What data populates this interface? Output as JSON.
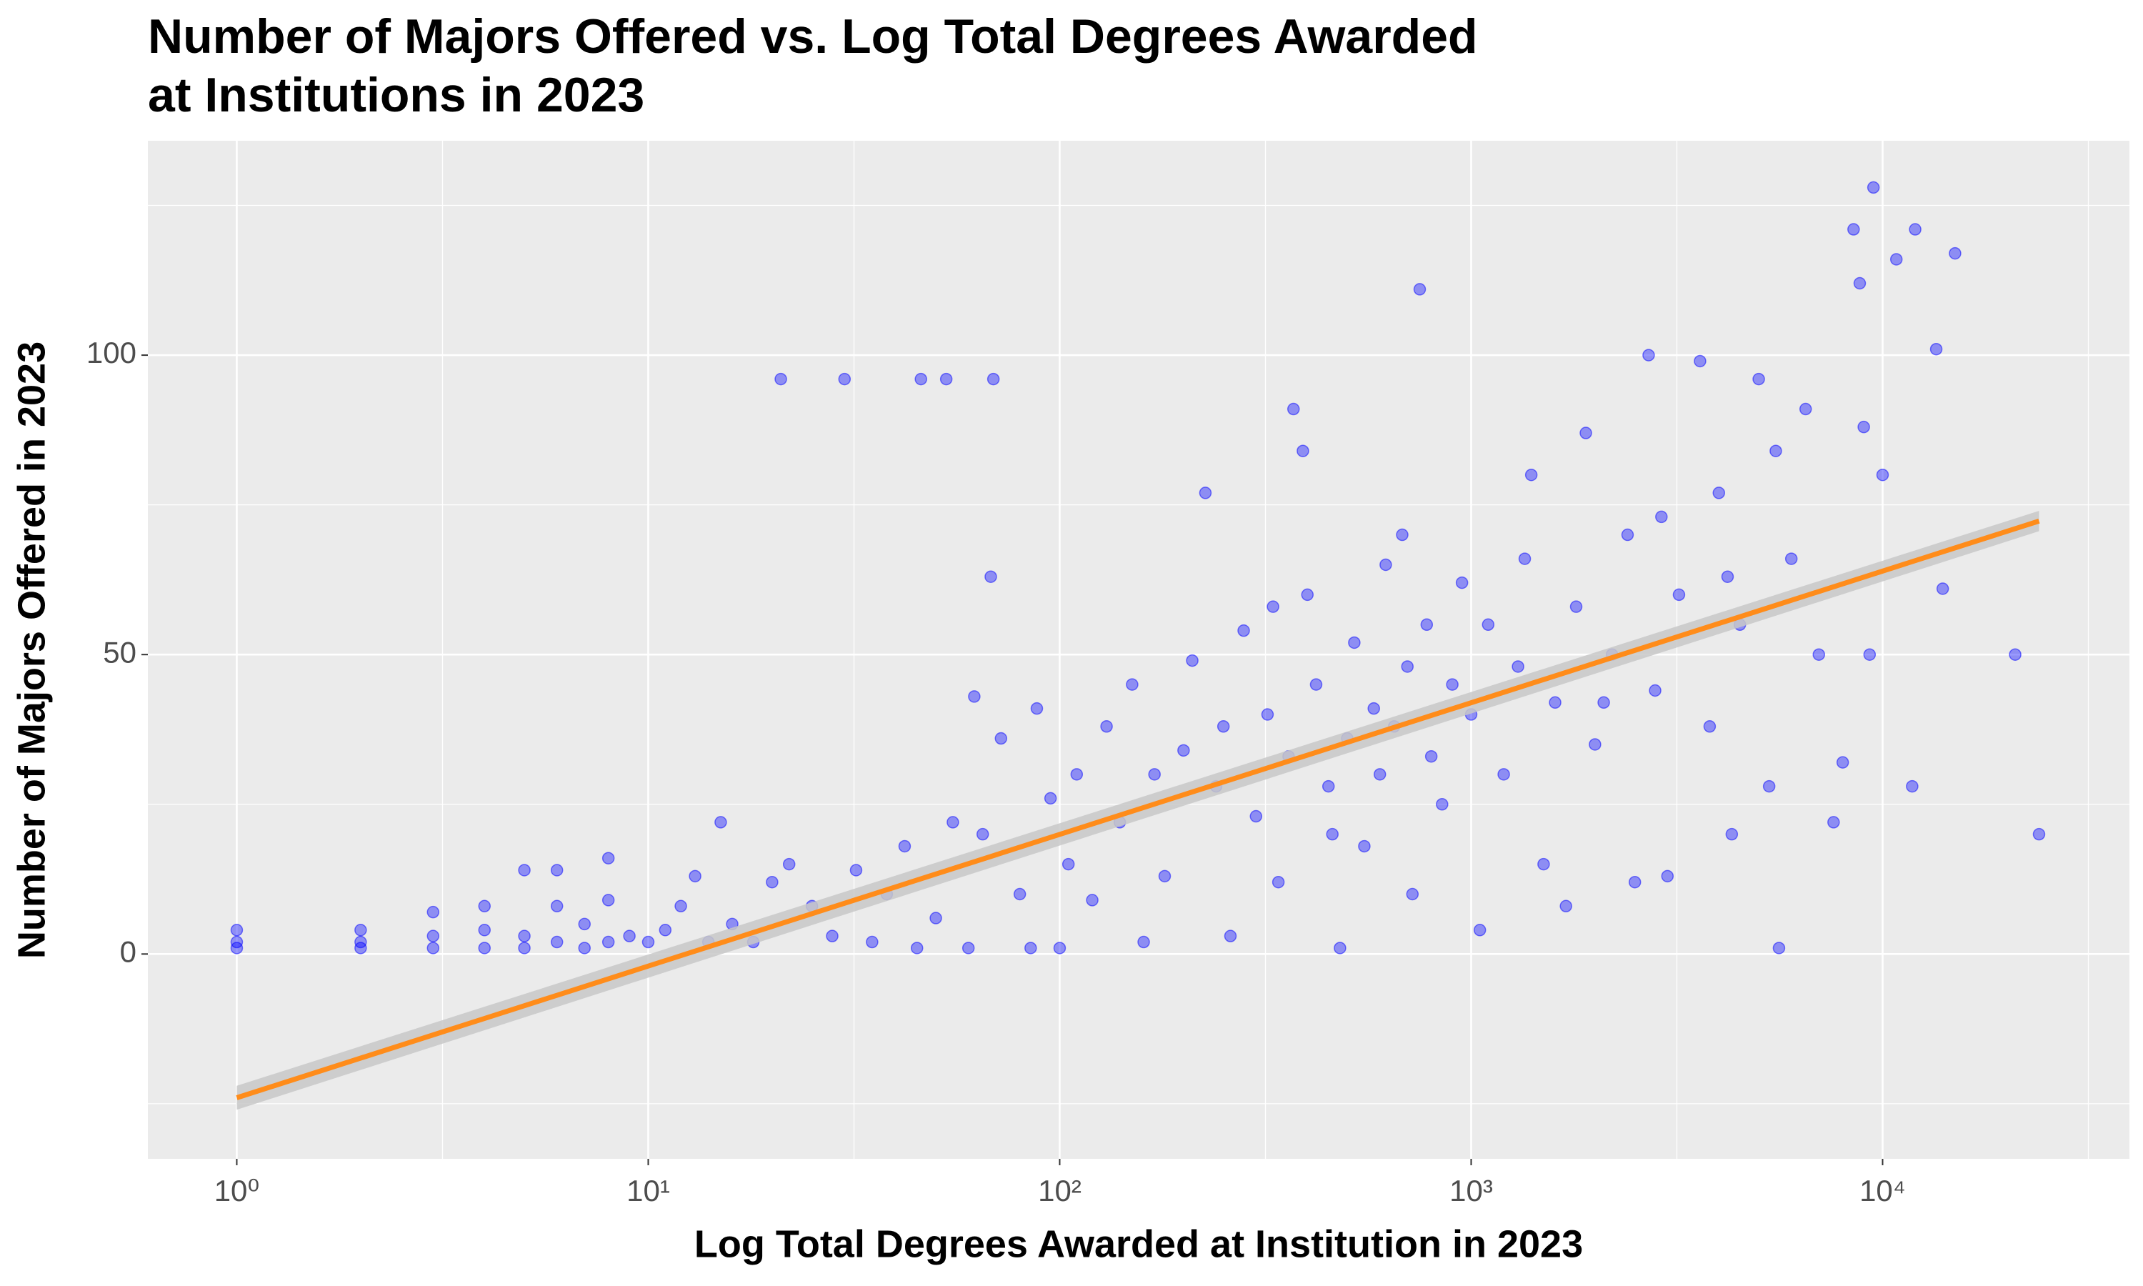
{
  "chart_data": {
    "type": "scatter",
    "title": [
      "Number of Majors Offered vs. Log Total Degrees Awarded",
      "at Institutions in 2023"
    ],
    "x_label": "Log Total Degrees Awarded at Institution in 2023",
    "y_label": "Number of Majors Offered in 2023",
    "x_log": true,
    "grid": true,
    "xlim": [
      0.608,
      39800
    ],
    "ylim": [
      -34.2,
      135.8
    ],
    "xticks": [
      {
        "value": 1,
        "label": "10⁰"
      },
      {
        "value": 10,
        "label": "10¹"
      },
      {
        "value": 100,
        "label": "10²"
      },
      {
        "value": 1000,
        "label": "10³"
      },
      {
        "value": 10000,
        "label": "10⁴"
      }
    ],
    "yticks": [
      0,
      50,
      100
    ],
    "points": {
      "color": "#0000ff",
      "x": [
        1,
        1,
        1,
        2,
        2,
        2,
        3,
        3,
        3,
        4,
        4,
        4,
        5,
        5,
        5,
        6,
        6,
        6,
        7,
        7,
        8,
        8,
        8,
        9,
        10,
        11,
        12,
        13,
        14,
        15,
        16,
        18,
        20,
        22,
        25,
        28,
        32,
        35,
        38,
        42,
        45,
        50,
        55,
        60,
        62,
        65,
        68,
        72,
        80,
        85,
        88,
        95,
        100,
        105,
        110,
        120,
        130,
        140,
        150,
        160,
        170,
        180,
        200,
        210,
        226,
        240,
        250,
        260,
        280,
        300,
        320,
        340,
        360,
        370,
        390,
        400,
        420,
        450,
        480,
        500,
        520,
        550,
        580,
        600,
        620,
        650,
        700,
        720,
        750,
        780,
        800,
        850,
        900,
        950,
        1000,
        1050,
        1100,
        1200,
        1300,
        1400,
        1500,
        1600,
        1700,
        1800,
        1900,
        2000,
        2200,
        2400,
        2500,
        2700,
        2800,
        3000,
        3200,
        3600,
        3800,
        4000,
        4300,
        4500,
        5000,
        5300,
        5600,
        6000,
        6500,
        7000,
        7600,
        8000,
        8500,
        8800,
        9000,
        9500,
        9300,
        10000,
        10800,
        12000,
        11800,
        13500,
        14000,
        15000,
        21000,
        24000,
        21,
        30,
        46,
        53,
        69,
        330,
        460,
        680,
        1350,
        2100,
        2900,
        4200,
        5500
      ],
      "values": [
        1,
        2,
        4,
        1,
        2,
        4,
        1,
        3,
        7,
        1,
        4,
        8,
        1,
        3,
        14,
        2,
        8,
        14,
        1,
        5,
        2,
        9,
        16,
        3,
        2,
        4,
        8,
        13,
        2,
        22,
        5,
        2,
        12,
        15,
        8,
        3,
        14,
        2,
        10,
        18,
        1,
        6,
        22,
        1,
        43,
        20,
        63,
        36,
        10,
        1,
        41,
        26,
        1,
        15,
        30,
        9,
        38,
        22,
        45,
        2,
        30,
        13,
        34,
        49,
        77,
        28,
        38,
        3,
        54,
        23,
        40,
        12,
        33,
        91,
        84,
        60,
        45,
        28,
        1,
        36,
        52,
        18,
        41,
        30,
        65,
        38,
        48,
        10,
        111,
        55,
        33,
        25,
        45,
        62,
        40,
        4,
        55,
        30,
        48,
        80,
        15,
        42,
        8,
        58,
        87,
        35,
        50,
        70,
        12,
        100,
        44,
        13,
        60,
        99,
        38,
        77,
        20,
        55,
        96,
        28,
        1,
        66,
        91,
        50,
        22,
        32,
        121,
        112,
        88,
        128,
        50,
        80,
        116,
        121,
        28,
        101,
        61,
        117,
        50,
        20,
        96,
        96,
        96,
        96,
        96,
        58,
        20,
        70,
        66,
        42,
        73,
        63,
        84
      ]
    },
    "fit": {
      "color": "#ff8c1a",
      "band_color": "#c8c8c8",
      "x": [
        1,
        24000
      ],
      "values": [
        -24,
        72.3
      ],
      "lower": [
        -26,
        70.6
      ],
      "upper": [
        -22,
        74
      ]
    }
  }
}
